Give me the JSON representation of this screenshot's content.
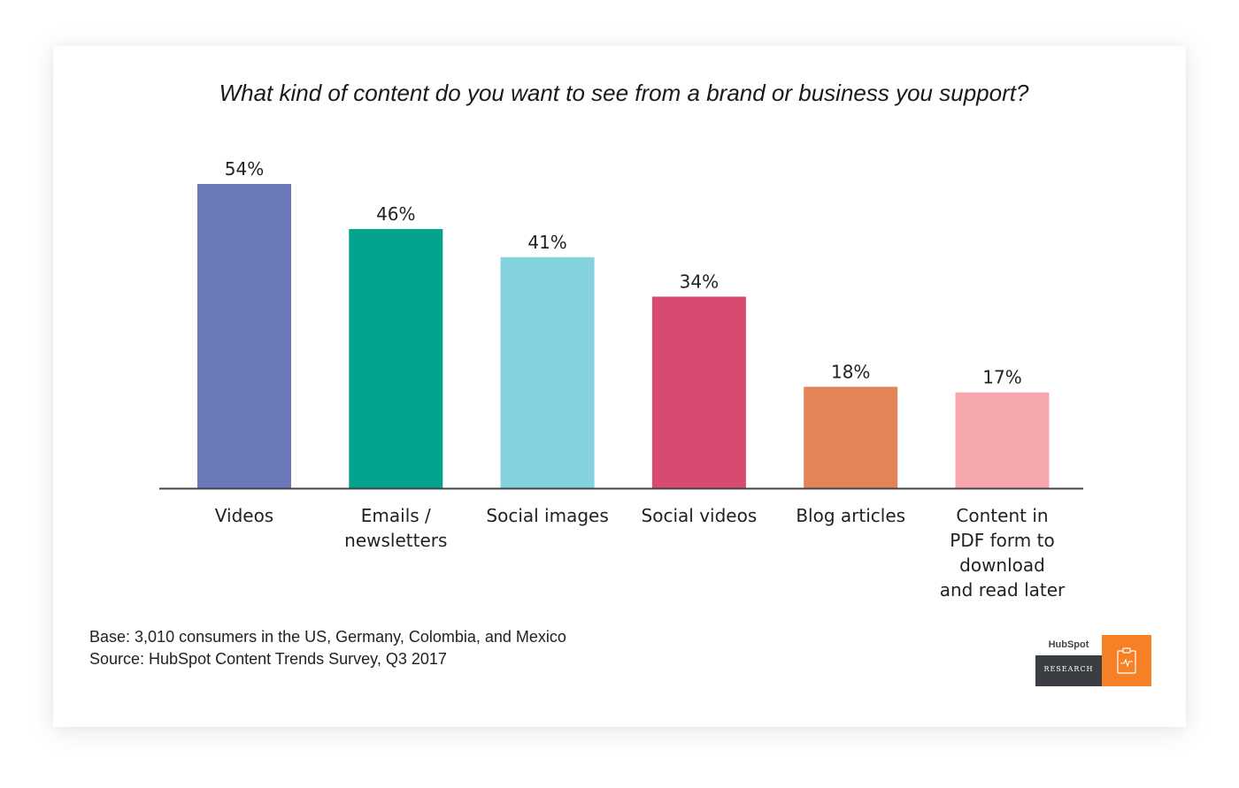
{
  "chart_data": {
    "type": "bar",
    "title": "What kind of content do you want to see from a brand or business you support?",
    "categories": [
      [
        "Videos"
      ],
      [
        "Emails /",
        "newsletters"
      ],
      [
        "Social images"
      ],
      [
        "Social videos"
      ],
      [
        "Blog articles"
      ],
      [
        "Content in",
        "PDF form to",
        "download",
        "and read later"
      ]
    ],
    "values": [
      54,
      46,
      41,
      34,
      18,
      17
    ],
    "value_labels": [
      "54%",
      "46%",
      "41%",
      "34%",
      "18%",
      "17%"
    ],
    "colors": [
      "#6b79b8",
      "#04a38e",
      "#84d2dd",
      "#d94a71",
      "#e38358",
      "#f7a8ae"
    ],
    "unit": "%",
    "ylim": [
      0,
      54
    ],
    "grid": false,
    "xlabel": "",
    "ylabel": ""
  },
  "footnote": {
    "base": "Base: 3,010 consumers in the US, Germany, Colombia, and Mexico",
    "source": "Source: HubSpot Content Trends Survey, Q3 2017"
  },
  "logo": {
    "brand": "HubSpot",
    "label": "RESEARCH",
    "icon": "clipboard-icon"
  }
}
